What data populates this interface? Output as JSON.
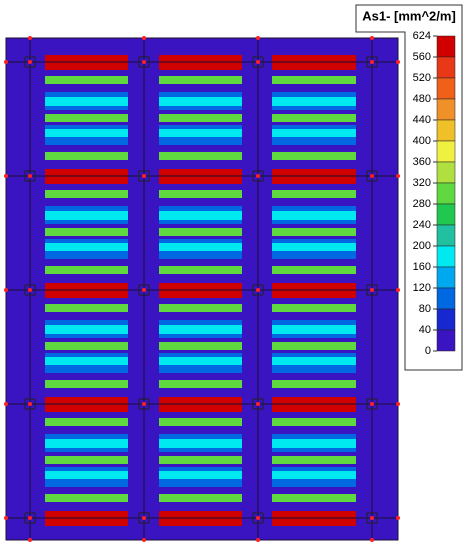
{
  "chart_data": {
    "type": "contour",
    "title": "As1- [mm^2/m]",
    "colorbar": {
      "ticks": [
        624,
        560,
        520,
        480,
        440,
        400,
        360,
        320,
        280,
        240,
        200,
        160,
        120,
        80,
        40,
        0
      ],
      "colors": [
        "#d00000",
        "#e83818",
        "#f06018",
        "#f09028",
        "#f0c028",
        "#f0f040",
        "#b0e040",
        "#60d840",
        "#20c850",
        "#20c0a0",
        "#00e8f0",
        "#00a8f0",
        "#0068e0",
        "#1828d0",
        "#3a14c0"
      ]
    },
    "background_value": 20,
    "stripe_values": [
      600,
      280,
      100,
      180,
      280,
      100,
      180,
      280
    ]
  }
}
